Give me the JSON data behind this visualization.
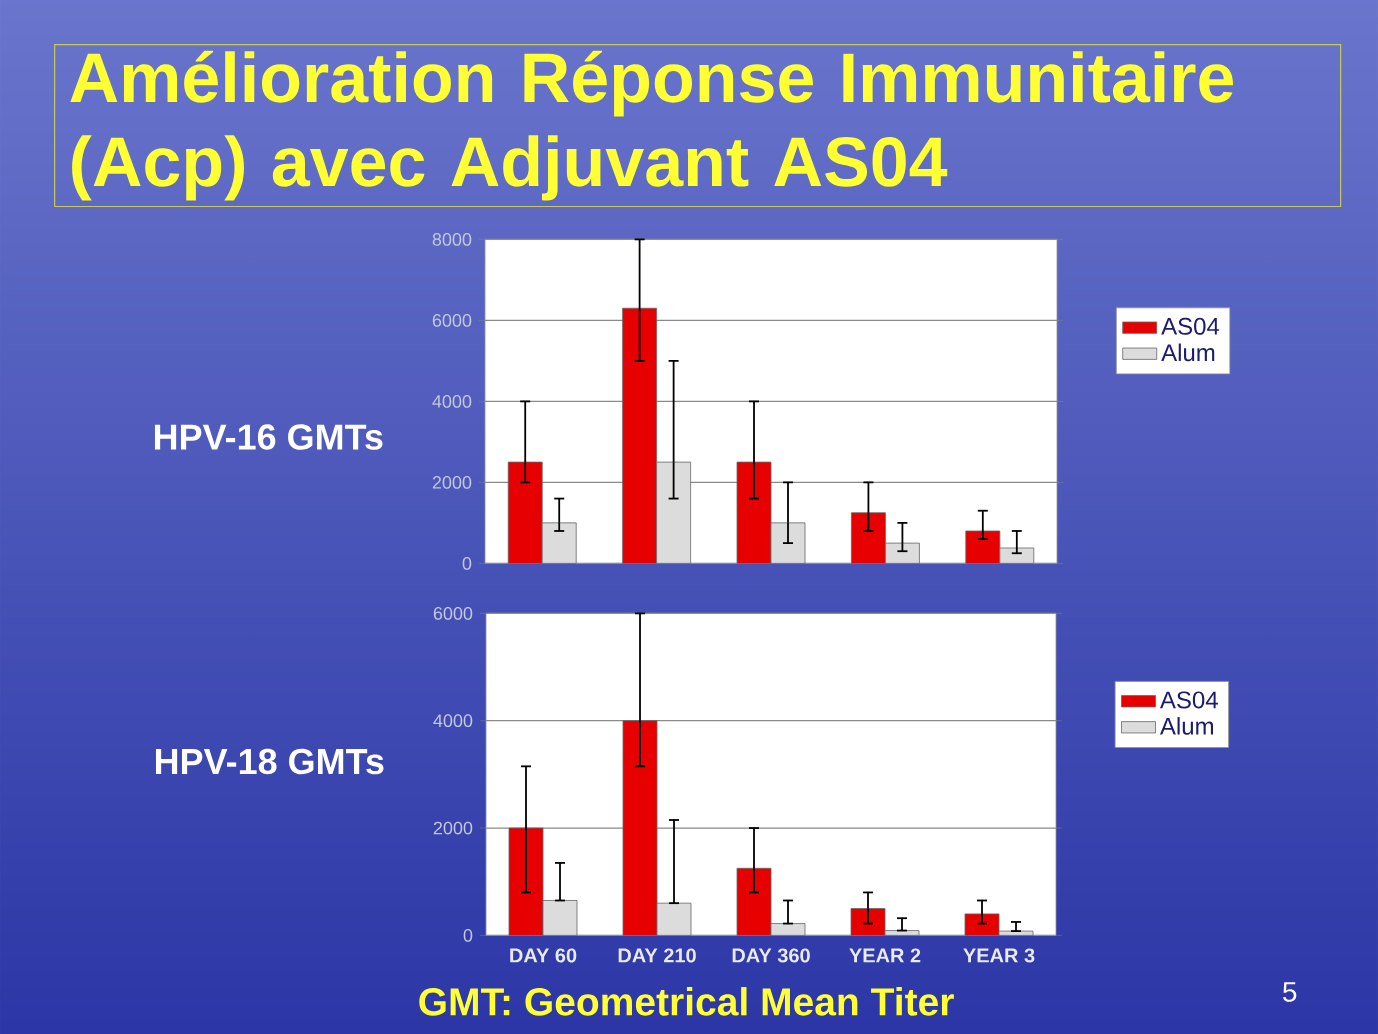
{
  "chart_data": [
    {
      "type": "bar",
      "title": "Amélioration Réponse Immunitaire (Acp) avec Adjuvant AS04",
      "ylabel": "HPV-16 GMTs",
      "categories": [
        null,
        null,
        null,
        null,
        null
      ],
      "series": [
        {
          "name": "AS04",
          "color": "#e60000",
          "values": [
            2500,
            6300,
            2500,
            1250,
            800
          ],
          "errors": [
            [
              2000,
              4000
            ],
            [
              5000,
              8000
            ],
            [
              1600,
              4000
            ],
            [
              800,
              2000
            ],
            [
              600,
              1300
            ]
          ]
        },
        {
          "name": "Alum",
          "color": "#dcdcdc",
          "values": [
            1000,
            2500,
            1000,
            500,
            380
          ],
          "errors": [
            [
              800,
              1600
            ],
            [
              1600,
              5000
            ],
            [
              500,
              2000
            ],
            [
              300,
              1000
            ],
            [
              250,
              800
            ]
          ]
        }
      ],
      "ylim": [
        0,
        8000
      ],
      "yticks": [
        0,
        2000,
        4000,
        6000,
        8000
      ],
      "grid": "y",
      "legend": "right",
      "tick_labels": "y"
    },
    {
      "type": "bar",
      "ylabel": "HPV-18 GMTs",
      "categories": [
        "DAY 60",
        "DAY 210",
        "DAY 360",
        "YEAR 2",
        "YEAR 3"
      ],
      "series": [
        {
          "name": "AS04",
          "color": "#e60000",
          "values": [
            2000,
            4000,
            1250,
            500,
            400
          ],
          "errors": [
            [
              800,
              3150
            ],
            [
              3150,
              6000
            ],
            [
              800,
              2000
            ],
            [
              220,
              800
            ],
            [
              220,
              650
            ]
          ]
        },
        {
          "name": "Alum",
          "color": "#dcdcdc",
          "values": [
            650,
            600,
            220,
            90,
            80
          ],
          "errors": [
            [
              650,
              1350
            ],
            [
              600,
              2150
            ],
            [
              220,
              650
            ],
            [
              90,
              320
            ],
            [
              80,
              250
            ]
          ]
        }
      ],
      "ylim": [
        0,
        6000
      ],
      "yticks": [
        0,
        2000,
        4000,
        6000
      ],
      "grid": "y",
      "legend": "right",
      "annotations": [
        "GMT: Geometrical Mean Titer",
        "5"
      ]
    }
  ]
}
